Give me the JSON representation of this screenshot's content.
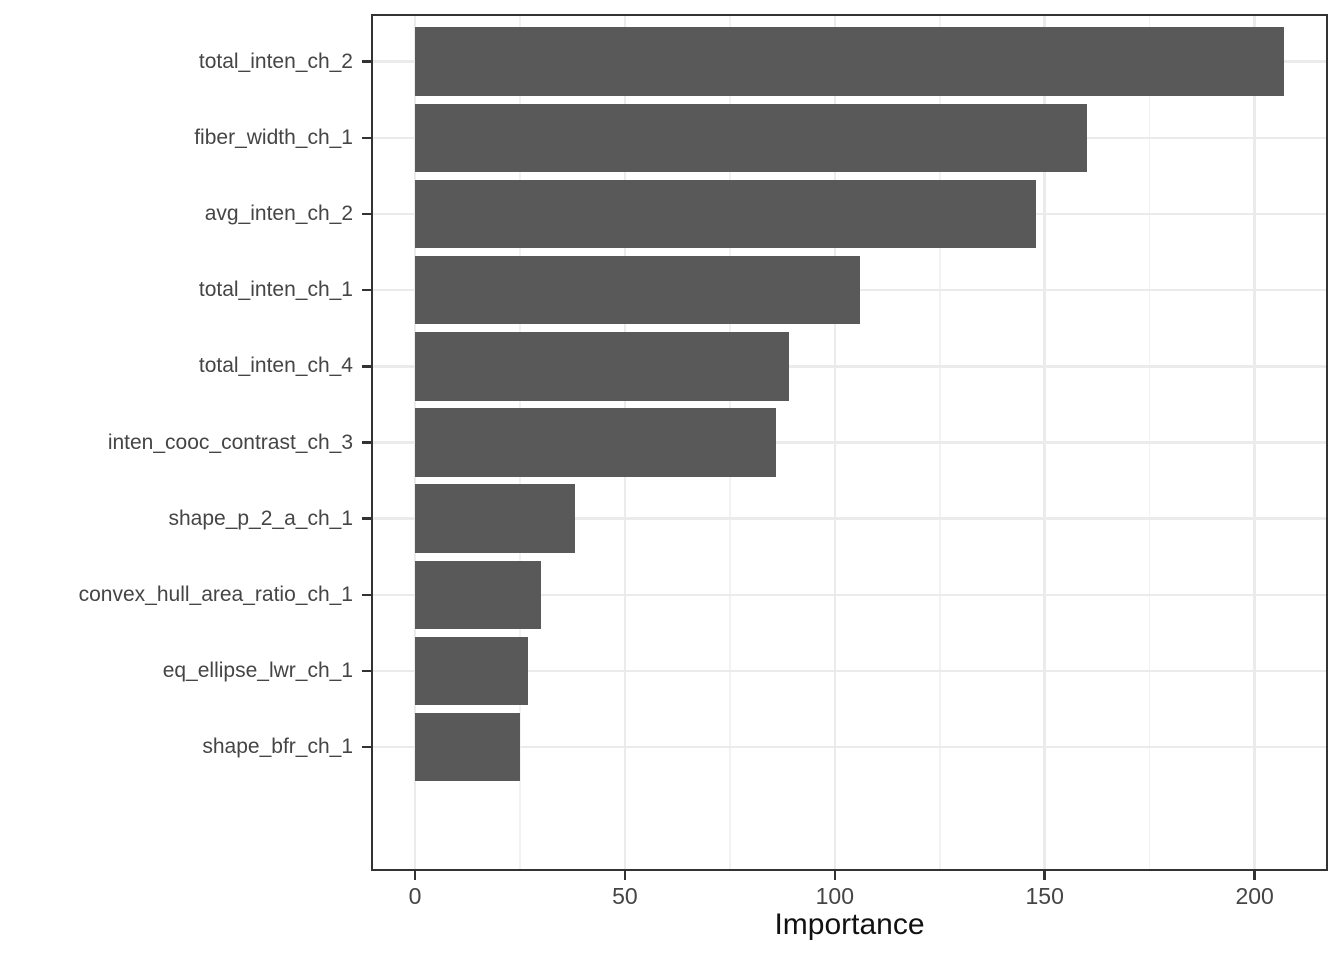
{
  "chart_data": {
    "type": "bar",
    "orientation": "horizontal",
    "title": "",
    "xlabel": "Importance",
    "ylabel": "",
    "categories": [
      "total_inten_ch_2",
      "fiber_width_ch_1",
      "avg_inten_ch_2",
      "total_inten_ch_1",
      "total_inten_ch_4",
      "inten_cooc_contrast_ch_3",
      "shape_p_2_a_ch_1",
      "convex_hull_area_ratio_ch_1",
      "eq_ellipse_lwr_ch_1",
      "shape_bfr_ch_1"
    ],
    "values": [
      207,
      160,
      148,
      106,
      89,
      86,
      38,
      30,
      27,
      25
    ],
    "x_ticks": [
      0,
      50,
      100,
      150,
      200
    ],
    "x_minor_ticks": [
      25,
      75,
      125,
      175
    ],
    "xlim": [
      -10,
      217
    ],
    "grid": true,
    "legend_position": "none",
    "colors": {
      "bar_fill": "#595959",
      "panel_border": "#333333",
      "major_grid": "#ebebeb",
      "minor_grid": "#f2f2f2",
      "tick_mark": "#333333",
      "axis_text": "#454545",
      "axis_title": "#111111",
      "background": "#ffffff"
    }
  }
}
